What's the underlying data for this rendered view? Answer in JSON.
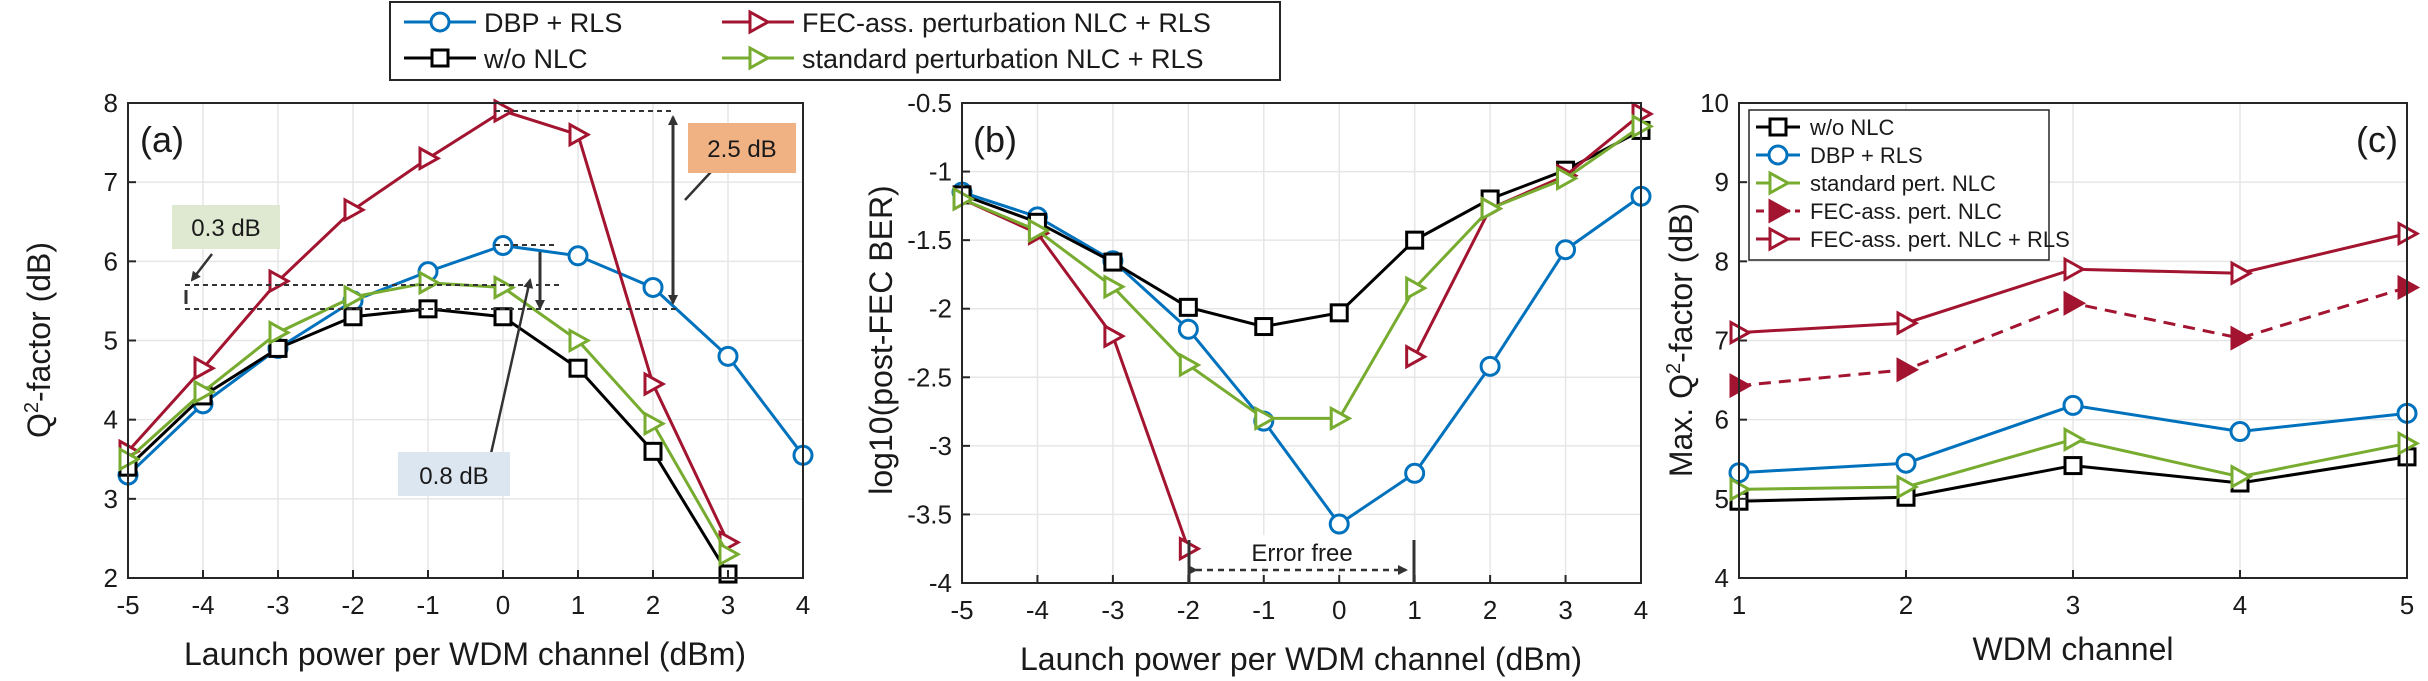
{
  "colors": {
    "blue": "#0072BD",
    "black": "#000000",
    "red": "#A2142F",
    "green": "#77AC30",
    "axis": "#262626",
    "grid": "#e6e6e6",
    "box_green": "#dfe8d1",
    "box_orange": "#f0b183",
    "box_blue": "#dbe6f1"
  },
  "top_legend": {
    "entries": [
      {
        "label": "DBP + RLS",
        "color": "#0072BD",
        "marker": "circle"
      },
      {
        "label": "FEC-ass. perturbation NLC + RLS",
        "color": "#A2142F",
        "marker": "triangle-right"
      },
      {
        "label": "w/o NLC",
        "color": "#000000",
        "marker": "square"
      },
      {
        "label": "standard perturbation NLC + RLS",
        "color": "#77AC30",
        "marker": "triangle-right"
      }
    ]
  },
  "chart_data": [
    {
      "panel": "(a)",
      "type": "line",
      "xlabel": "Launch power per WDM channel (dBm)",
      "ylabel_main": "Q",
      "ylabel_sup": "2",
      "ylabel_rest": "-factor (dB)",
      "xlim": [
        -5,
        4
      ],
      "ylim": [
        2,
        8
      ],
      "xticks": [
        -5,
        -4,
        -3,
        -2,
        -1,
        0,
        1,
        2,
        3,
        4
      ],
      "yticks": [
        2,
        3,
        4,
        5,
        6,
        7,
        8
      ],
      "series": [
        {
          "name": "DBP + RLS",
          "color": "#0072BD",
          "marker": "circle",
          "x": [
            -5,
            -4,
            -3,
            -2,
            -1,
            0,
            1,
            2,
            3,
            4
          ],
          "y": [
            3.3,
            4.2,
            4.9,
            5.5,
            5.87,
            6.2,
            6.07,
            5.67,
            4.8,
            3.55
          ]
        },
        {
          "name": "w/o NLC",
          "color": "#000000",
          "marker": "square",
          "x": [
            -5,
            -4,
            -3,
            -2,
            -1,
            0,
            1,
            2,
            3
          ],
          "y": [
            3.4,
            4.3,
            4.9,
            5.3,
            5.4,
            5.3,
            4.65,
            3.6,
            2.05
          ]
        },
        {
          "name": "FEC-ass. perturbation NLC + RLS",
          "color": "#A2142F",
          "marker": "triangle-right",
          "x": [
            -5,
            -4,
            -3,
            -2,
            -1,
            0,
            1,
            2,
            3
          ],
          "y": [
            3.6,
            4.65,
            5.75,
            6.65,
            7.3,
            7.9,
            7.6,
            4.45,
            2.45
          ]
        },
        {
          "name": "standard perturbation NLC + RLS",
          "color": "#77AC30",
          "marker": "triangle-right",
          "x": [
            -5,
            -4,
            -3,
            -2,
            -1,
            0,
            1,
            2,
            3
          ],
          "y": [
            3.5,
            4.35,
            5.1,
            5.55,
            5.73,
            5.67,
            5.0,
            3.95,
            2.3
          ]
        }
      ],
      "annotations": [
        {
          "text": "0.3 dB"
        },
        {
          "text": "2.5 dB"
        },
        {
          "text": "0.8 dB"
        }
      ]
    },
    {
      "panel": "(b)",
      "type": "line",
      "xlabel": "Launch power per WDM channel (dBm)",
      "ylabel": "log10(post-FEC BER)",
      "xlim": [
        -5,
        4
      ],
      "ylim": [
        -4,
        -0.5
      ],
      "xticks": [
        -5,
        -4,
        -3,
        -2,
        -1,
        0,
        1,
        2,
        3,
        4
      ],
      "yticks": [
        -4,
        -3.5,
        -3,
        -2.5,
        -2,
        -1.5,
        -1,
        -0.5
      ],
      "series": [
        {
          "name": "DBP + RLS",
          "color": "#0072BD",
          "marker": "circle",
          "x": [
            -5,
            -4,
            -3,
            -2,
            -1,
            0,
            1,
            2,
            3,
            4
          ],
          "y": [
            -1.15,
            -1.33,
            -1.65,
            -2.15,
            -2.82,
            -3.57,
            -3.2,
            -2.42,
            -1.57,
            -1.18
          ]
        },
        {
          "name": "w/o NLC",
          "color": "#000000",
          "marker": "square",
          "x": [
            -5,
            -4,
            -3,
            -2,
            -1,
            0,
            1,
            2,
            3,
            4
          ],
          "y": [
            -1.17,
            -1.37,
            -1.66,
            -1.99,
            -2.13,
            -2.03,
            -1.5,
            -1.2,
            -0.99,
            -0.7
          ]
        },
        {
          "name": "FEC-ass. perturbation NLC + RLS",
          "color": "#A2142F",
          "marker": "triangle-right",
          "x": [
            -5,
            -4,
            -3,
            -2
          ],
          "y": [
            -1.2,
            -1.45,
            -2.2,
            -3.75
          ]
        },
        {
          "name": "FEC-ass. perturbation NLC + RLS (upper branch)",
          "color": "#A2142F",
          "marker": "triangle-right",
          "x": [
            1,
            2,
            3,
            4
          ],
          "y": [
            -2.35,
            -1.27,
            -1.03,
            -0.58
          ]
        },
        {
          "name": "standard perturbation NLC + RLS",
          "color": "#77AC30",
          "marker": "triangle-right",
          "x": [
            -5,
            -4,
            -3,
            -2,
            -1,
            0,
            1,
            2,
            3,
            4
          ],
          "y": [
            -1.2,
            -1.43,
            -1.84,
            -2.41,
            -2.8,
            -2.8,
            -1.85,
            -1.27,
            -1.05,
            -0.67
          ]
        }
      ],
      "annotations": [
        {
          "text": "Error free"
        }
      ]
    },
    {
      "panel": "(c)",
      "type": "line",
      "xlabel": "WDM channel",
      "ylabel_main": "Max. Q",
      "ylabel_sup": "2",
      "ylabel_rest": "-factor (dB)",
      "xlim": [
        1,
        5
      ],
      "ylim": [
        4,
        10
      ],
      "xticks": [
        1,
        2,
        3,
        4,
        5
      ],
      "yticks": [
        4,
        5,
        6,
        7,
        8,
        9,
        10
      ],
      "series": [
        {
          "name": "w/o NLC",
          "color": "#000000",
          "marker": "square",
          "x": [
            1,
            2,
            3,
            4,
            5
          ],
          "y": [
            4.97,
            5.02,
            5.42,
            5.2,
            5.53
          ]
        },
        {
          "name": "DBP + RLS",
          "color": "#0072BD",
          "marker": "circle",
          "x": [
            1,
            2,
            3,
            4,
            5
          ],
          "y": [
            5.33,
            5.45,
            6.18,
            5.85,
            6.08
          ]
        },
        {
          "name": "standard pert. NLC",
          "color": "#77AC30",
          "marker": "triangle-right",
          "x": [
            1,
            2,
            3,
            4,
            5
          ],
          "y": [
            5.12,
            5.15,
            5.75,
            5.28,
            5.7
          ]
        },
        {
          "name": "FEC-ass. pert. NLC",
          "color": "#A2142F",
          "marker": "triangle-right-filled",
          "dashed": true,
          "x": [
            1,
            2,
            3,
            4,
            5
          ],
          "y": [
            6.43,
            6.63,
            7.47,
            7.03,
            7.67
          ]
        },
        {
          "name": "FEC-ass. pert. NLC + RLS",
          "color": "#A2142F",
          "marker": "triangle-right",
          "x": [
            1,
            2,
            3,
            4,
            5
          ],
          "y": [
            7.1,
            7.22,
            7.9,
            7.85,
            8.35
          ]
        }
      ]
    }
  ]
}
